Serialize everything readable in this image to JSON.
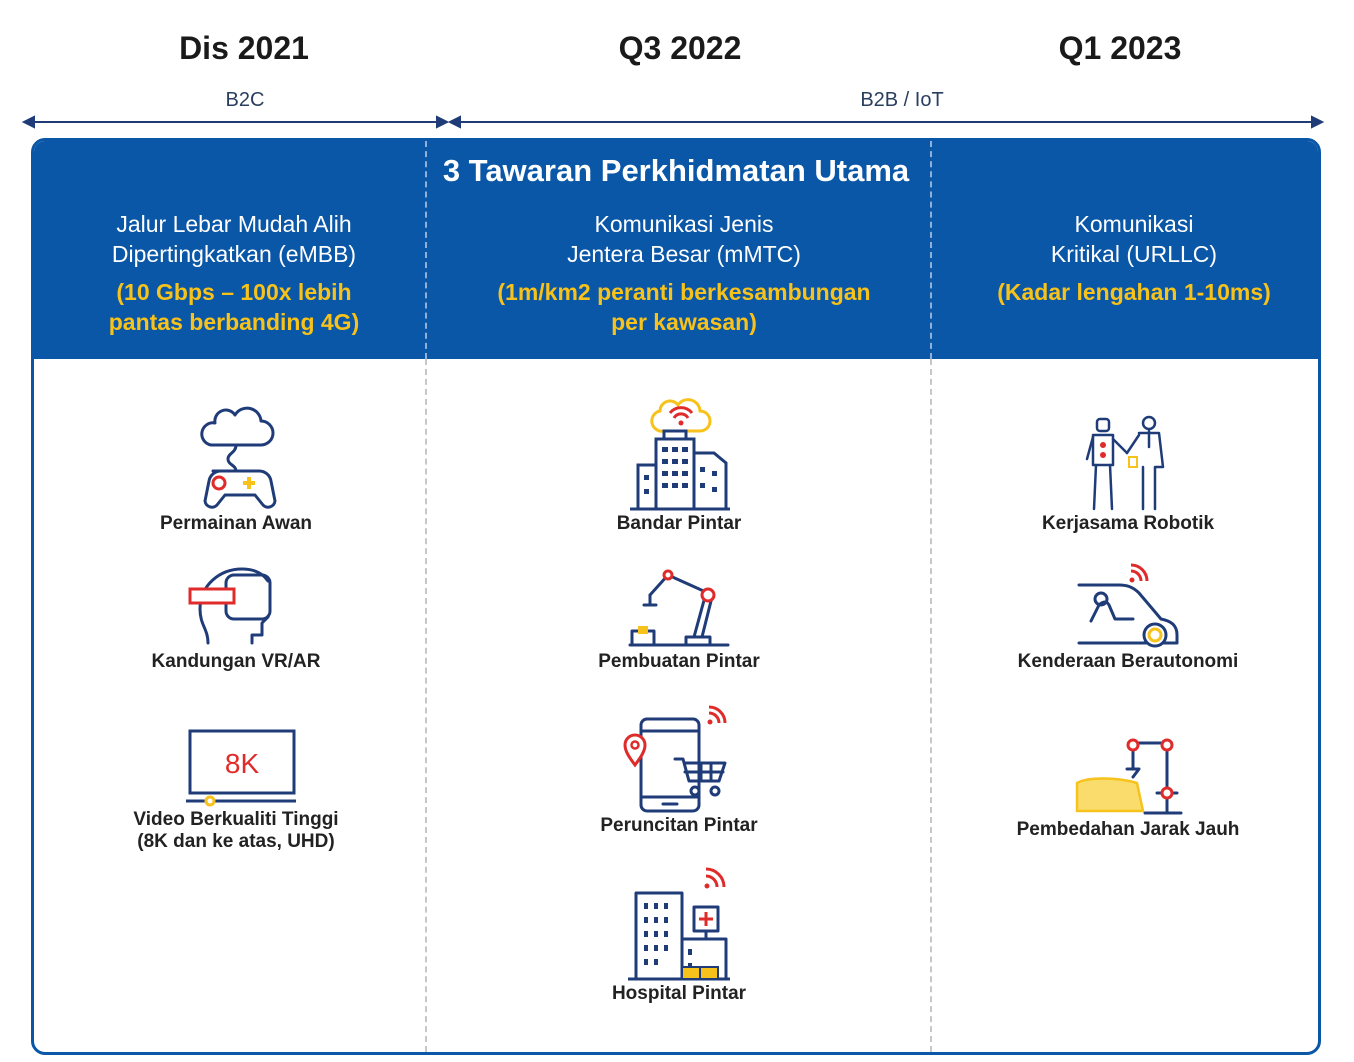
{
  "timeline": {
    "periods": [
      "Dis 2021",
      "Q3 2022",
      "Q1 2023"
    ],
    "segments": [
      "B2C",
      "B2B / IoT"
    ]
  },
  "panel": {
    "title": "3 Tawaran Perkhidmatan Utama",
    "columns": [
      {
        "name": "Jalur Lebar Mudah Alih\nDipertingkatkan (eMBB)",
        "spec": "(10 Gbps – 100x lebih\npantas berbanding 4G)",
        "items": [
          {
            "label": "Permainan Awan",
            "icon": "cloud-gamepad-icon"
          },
          {
            "label": "Kandungan VR/AR",
            "icon": "vr-headset-icon"
          },
          {
            "label": "Video Berkualiti Tinggi\n(8K dan ke atas, UHD)",
            "icon": "8k-tv-icon",
            "screen_text": "8K"
          }
        ]
      },
      {
        "name": "Komunikasi Jenis\nJentera Besar (mMTC)",
        "spec": "(1m/km2 peranti berkesambungan\nper kawasan)",
        "items": [
          {
            "label": "Bandar Pintar",
            "icon": "smart-city-icon"
          },
          {
            "label": "Pembuatan Pintar",
            "icon": "robot-arm-icon"
          },
          {
            "label": "Peruncitan Pintar",
            "icon": "smart-retail-icon"
          },
          {
            "label": "Hospital Pintar",
            "icon": "hospital-icon"
          }
        ]
      },
      {
        "name": "Komunikasi\nKritikal (URLLC)",
        "spec": "(Kadar lengahan 1-10ms)",
        "items": [
          {
            "label": "Kerjasama Robotik",
            "icon": "robot-handshake-icon"
          },
          {
            "label": "Kenderaan Berautonomi",
            "icon": "autonomous-car-icon"
          },
          {
            "label": "Pembedahan Jarak Jauh",
            "icon": "remote-surgery-icon"
          }
        ]
      }
    ]
  },
  "colors": {
    "brand_blue": "#0a56a7",
    "accent_yellow": "#f6c21b",
    "accent_red": "#e02b2b",
    "icon_navy": "#1f3c78"
  }
}
